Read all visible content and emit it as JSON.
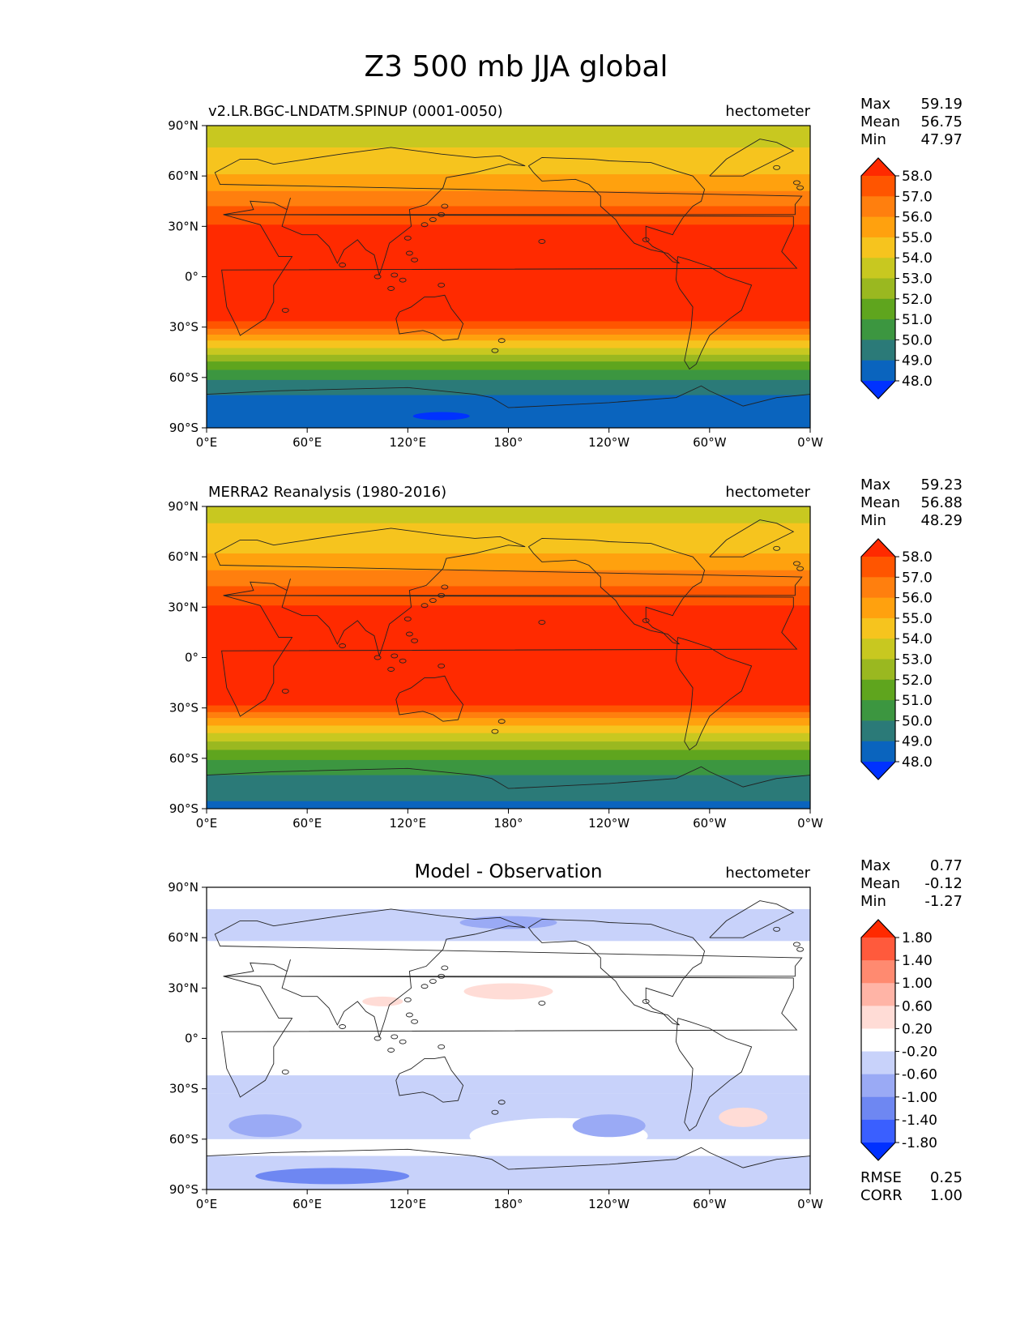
{
  "title": "Z3 500 mb JJA global",
  "lat_ticks": [
    "90°N",
    "60°N",
    "30°N",
    "0°",
    "30°S",
    "60°S",
    "90°S"
  ],
  "lon_ticks": [
    "0°E",
    "60°E",
    "120°E",
    "180°",
    "120°W",
    "60°W",
    "0°W"
  ],
  "chart_data": [
    {
      "type": "heatmap",
      "panel": "test",
      "title": "v2.LR.BGC-LNDATM.SPINUP (0001-0050)",
      "units": "hectometer",
      "stats": [
        {
          "label": "Max",
          "value": "59.19"
        },
        {
          "label": "Mean",
          "value": "56.75"
        },
        {
          "label": "Min",
          "value": "47.97"
        }
      ],
      "colorbar": {
        "levels": [
          "58.0",
          "57.0",
          "56.0",
          "55.0",
          "54.0",
          "53.0",
          "52.0",
          "51.0",
          "50.0",
          "49.0",
          "48.0"
        ],
        "colors": [
          "#ff2a00",
          "#ff5500",
          "#ff7f0e",
          "#ffa10e",
          "#f6c41e",
          "#c8c820",
          "#9ab820",
          "#5fa51e",
          "#3c9640",
          "#2b7a78",
          "#0a64be",
          "#0032ff"
        ]
      },
      "zonal_profile": {
        "lat": [
          -90,
          -80,
          -70,
          -62,
          -55,
          -48,
          -42,
          -37,
          -33,
          -30,
          -25,
          0,
          25,
          35,
          42,
          48,
          55,
          63,
          72,
          80,
          90
        ],
        "value": [
          48.9,
          48.9,
          49.0,
          49.9,
          51.0,
          52.5,
          54.0,
          55.2,
          56.3,
          57.2,
          58.2,
          58.6,
          58.3,
          57.8,
          57.0,
          56.3,
          55.6,
          54.8,
          54.2,
          53.9,
          53.8
        ]
      },
      "features": [
        {
          "lon": 140,
          "lat": -83,
          "value": 47.97
        }
      ]
    },
    {
      "type": "heatmap",
      "panel": "reference",
      "title": "MERRA2 Reanalysis (1980-2016)",
      "units": "hectometer",
      "stats": [
        {
          "label": "Max",
          "value": "59.23"
        },
        {
          "label": "Mean",
          "value": "56.88"
        },
        {
          "label": "Min",
          "value": "48.29"
        }
      ],
      "colorbar": {
        "levels": [
          "58.0",
          "57.0",
          "56.0",
          "55.0",
          "54.0",
          "53.0",
          "52.0",
          "51.0",
          "50.0",
          "49.0",
          "48.0"
        ],
        "colors": [
          "#ff2a00",
          "#ff5500",
          "#ff7f0e",
          "#ffa10e",
          "#f6c41e",
          "#c8c820",
          "#9ab820",
          "#5fa51e",
          "#3c9640",
          "#2b7a78",
          "#0a64be",
          "#0032ff"
        ]
      },
      "zonal_profile": {
        "lat": [
          -90,
          -80,
          -72,
          -65,
          -58,
          -52,
          -46,
          -41,
          -36,
          -32,
          -28,
          -25,
          0,
          25,
          35,
          42,
          48,
          55,
          63,
          72,
          80,
          90
        ],
        "value": [
          48.7,
          49.3,
          49.8,
          50.4,
          51.4,
          52.5,
          53.7,
          54.8,
          55.9,
          57.0,
          58.0,
          58.3,
          58.6,
          58.3,
          57.8,
          57.1,
          56.4,
          55.7,
          54.9,
          54.3,
          54.0,
          53.9
        ]
      },
      "features": []
    },
    {
      "type": "heatmap",
      "panel": "difference",
      "title": "Model - Observation",
      "units": "hectometer",
      "stats": [
        {
          "label": "Max",
          "value": "0.77"
        },
        {
          "label": "Mean",
          "value": "-0.12"
        },
        {
          "label": "Min",
          "value": "-1.27"
        }
      ],
      "metrics": [
        {
          "label": "RMSE",
          "value": "0.25"
        },
        {
          "label": "CORR",
          "value": "1.00"
        }
      ],
      "colorbar": {
        "levels": [
          "1.80",
          "1.40",
          "1.00",
          "0.60",
          "0.20",
          "-0.20",
          "-0.60",
          "-1.00",
          "-1.40",
          "-1.80"
        ],
        "colors": [
          "#ff2a00",
          "#ff5a3c",
          "#ff8a70",
          "#ffb4a6",
          "#ffdcd6",
          "#ffffff",
          "#c8d2fa",
          "#9aaaf5",
          "#6e87f2",
          "#3a5fff",
          "#0030ff"
        ]
      },
      "features": [
        {
          "lon": 180,
          "lat": 69,
          "value": -0.8
        },
        {
          "lon": 35,
          "lat": -52,
          "value": -0.8
        },
        {
          "lon": 240,
          "lat": -52,
          "value": -0.8
        },
        {
          "lon": 75,
          "lat": -82,
          "value": -1.1
        },
        {
          "lon": 180,
          "lat": 28,
          "value": 0.4
        },
        {
          "lon": 105,
          "lat": 22,
          "value": 0.4
        },
        {
          "lon": 320,
          "lat": -47,
          "value": 0.4
        }
      ]
    }
  ]
}
